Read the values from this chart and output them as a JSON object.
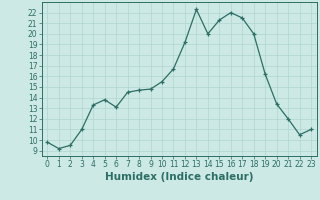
{
  "x": [
    0,
    1,
    2,
    3,
    4,
    5,
    6,
    7,
    8,
    9,
    10,
    11,
    12,
    13,
    14,
    15,
    16,
    17,
    18,
    19,
    20,
    21,
    22,
    23
  ],
  "y": [
    9.8,
    9.2,
    9.5,
    11.0,
    13.3,
    13.8,
    13.1,
    14.5,
    14.7,
    14.8,
    15.5,
    16.7,
    19.2,
    22.3,
    20.0,
    21.3,
    22.0,
    21.5,
    20.0,
    16.2,
    13.4,
    12.0,
    10.5,
    11.0
  ],
  "bg_color": "#cce9e5",
  "line_color": "#2d6e65",
  "grid_color": "#b0d5d0",
  "xlabel": "Humidex (Indice chaleur)",
  "xlim": [
    -0.5,
    23.5
  ],
  "ylim": [
    8.5,
    23.0
  ],
  "yticks": [
    9,
    10,
    11,
    12,
    13,
    14,
    15,
    16,
    17,
    18,
    19,
    20,
    21,
    22
  ],
  "xticks": [
    0,
    1,
    2,
    3,
    4,
    5,
    6,
    7,
    8,
    9,
    10,
    11,
    12,
    13,
    14,
    15,
    16,
    17,
    18,
    19,
    20,
    21,
    22,
    23
  ],
  "tick_label_fontsize": 5.5,
  "xlabel_fontsize": 7.5
}
